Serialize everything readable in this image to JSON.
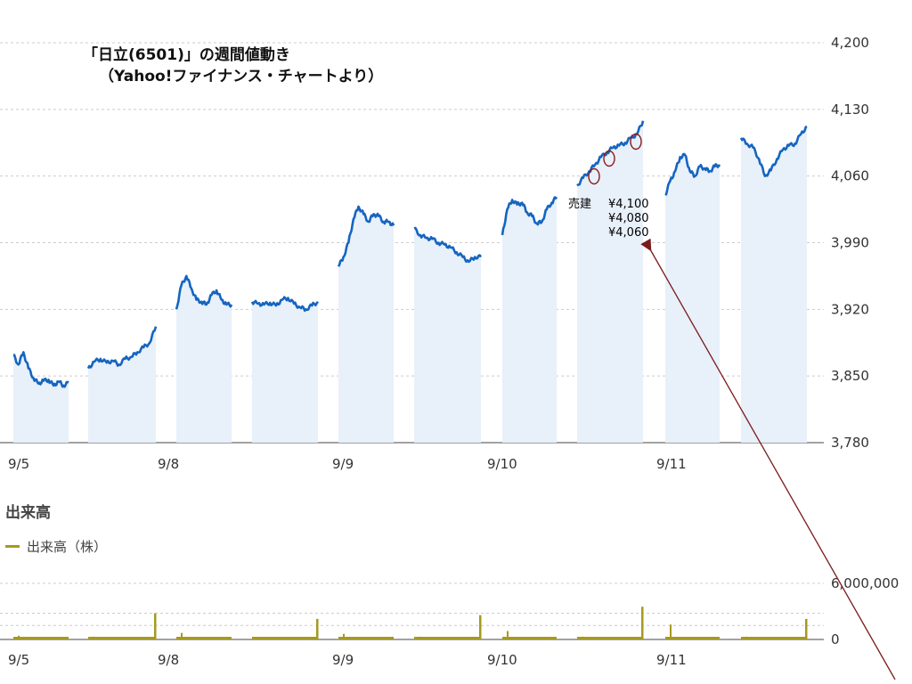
{
  "title": {
    "line1": "「日立(6501)」の週間値動き",
    "line2": "（Yahoo!ファイナンス・チャートより）"
  },
  "volume_panel": {
    "label": "出来高",
    "legend": "出来高（株）"
  },
  "annotation": {
    "label": "売建",
    "prices": [
      "¥4,100",
      "¥4,080",
      "¥4,060"
    ]
  },
  "colors": {
    "price_line": "#1565c0",
    "price_fill": "#e8f0fa",
    "volume": "#a59a1f",
    "grid": "#cccccc",
    "marker": "#8b1a1a",
    "arrow": "#7a1a1a"
  },
  "chart_data": [
    {
      "type": "area",
      "title": "「日立(6501)」の週間値動き",
      "ylim": [
        3780,
        4200
      ],
      "y_ticks": [
        "4,200",
        "4,130",
        "4,060",
        "3,990",
        "3,920",
        "3,850",
        "3,780"
      ],
      "x_tick_labels": [
        "9/5",
        "9/8",
        "9/9",
        "9/10",
        "9/11"
      ],
      "sessions": [
        {
          "date": "9/5",
          "half": "AM",
          "values": [
            3872,
            3862,
            3875,
            3858,
            3848,
            3842,
            3845,
            3846,
            3840,
            3844,
            3840,
            3843
          ]
        },
        {
          "date": "9/5",
          "half": "PM",
          "values": [
            3858,
            3865,
            3868,
            3864,
            3866,
            3862,
            3868,
            3870,
            3875,
            3880,
            3885,
            3902
          ]
        },
        {
          "date": "9/8",
          "half": "AM",
          "values": [
            3920,
            3945,
            3955,
            3942,
            3930,
            3928,
            3925,
            3935,
            3940,
            3930,
            3925,
            3925
          ]
        },
        {
          "date": "9/8",
          "half": "PM",
          "values": [
            3928,
            3926,
            3925,
            3927,
            3924,
            3930,
            3932,
            3926,
            3922,
            3920,
            3924,
            3928
          ]
        },
        {
          "date": "9/9",
          "half": "AM",
          "values": [
            3965,
            3975,
            3990,
            4015,
            4028,
            4020,
            4012,
            4020,
            4018,
            4012,
            4012,
            4008
          ]
        },
        {
          "date": "9/9",
          "half": "PM",
          "values": [
            4005,
            3998,
            3995,
            3994,
            3990,
            3988,
            3985,
            3980,
            3975,
            3970,
            3975,
            3975
          ]
        },
        {
          "date": "9/10",
          "half": "AM",
          "values": [
            3998,
            4025,
            4035,
            4030,
            4032,
            4022,
            4018,
            4010,
            4012,
            4025,
            4032,
            4038
          ]
        },
        {
          "date": "9/10",
          "half": "PM",
          "values": [
            4050,
            4058,
            4065,
            4072,
            4080,
            4085,
            4090,
            4092,
            4095,
            4100,
            4104,
            4118
          ]
        },
        {
          "date": "9/11",
          "half": "AM",
          "values": [
            4040,
            4055,
            4065,
            4080,
            4082,
            4065,
            4060,
            4070,
            4068,
            4065,
            4070,
            4072
          ]
        },
        {
          "date": "9/11",
          "half": "PM",
          "values": [
            4100,
            4094,
            4090,
            4078,
            4060,
            4066,
            4078,
            4088,
            4092,
            4094,
            4104,
            4112
          ]
        }
      ]
    },
    {
      "type": "bar",
      "title": "出来高",
      "legend": "出来高（株）",
      "ylim": [
        0,
        6000000
      ],
      "y_ticks": [
        "6,000,000",
        "0"
      ],
      "x_tick_labels": [
        "9/5",
        "9/8",
        "9/9",
        "9/10",
        "9/11"
      ],
      "session_spikes": [
        {
          "open": 400000,
          "close": 0
        },
        {
          "open": 300000,
          "close": 2800000
        },
        {
          "open": 700000,
          "close": 0
        },
        {
          "open": 200000,
          "close": 2200000
        },
        {
          "open": 600000,
          "close": 0
        },
        {
          "open": 300000,
          "close": 2600000
        },
        {
          "open": 900000,
          "close": 0
        },
        {
          "open": 300000,
          "close": 3500000
        },
        {
          "open": 1600000,
          "close": 0
        },
        {
          "open": 300000,
          "close": 2200000
        }
      ]
    }
  ]
}
